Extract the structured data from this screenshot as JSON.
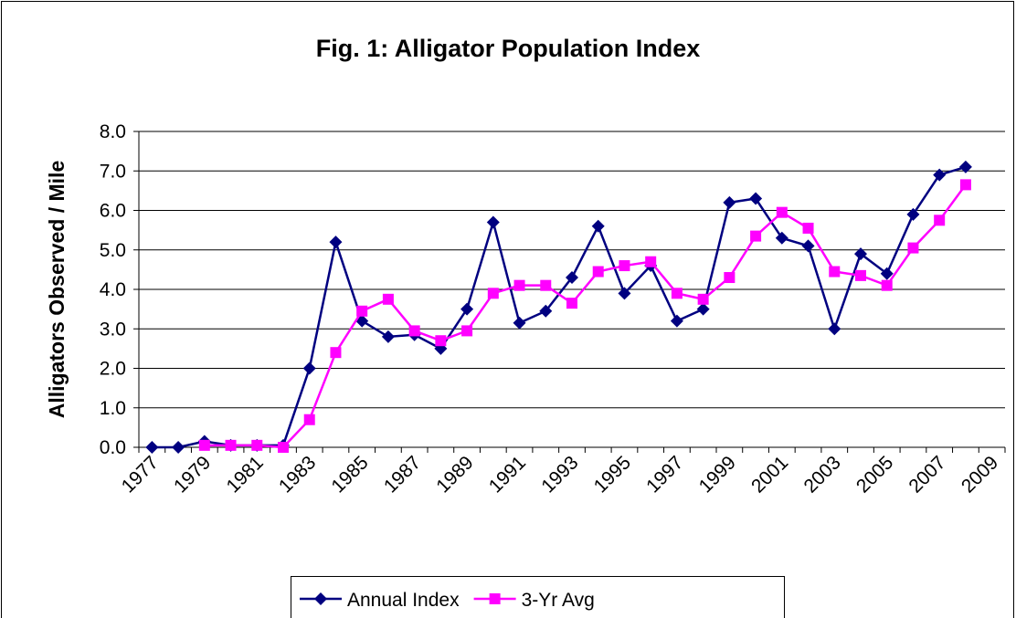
{
  "chart_data": {
    "type": "line",
    "title": "Fig. 1: Alligator Population Index",
    "y_label": "Alligators Observed / Mile",
    "categories": [
      1977,
      null,
      1979,
      null,
      1981,
      null,
      1983,
      null,
      1985,
      null,
      1987,
      null,
      1989,
      null,
      1991,
      null,
      1993,
      null,
      1995,
      null,
      1997,
      null,
      1999,
      null,
      2001,
      null,
      2003,
      null,
      2005,
      null,
      2007,
      null,
      2009
    ],
    "series": [
      {
        "name": "Annual Index",
        "color": "#000080",
        "marker": "diamond",
        "values": [
          0.0,
          0.0,
          0.15,
          0.05,
          0.05,
          0.05,
          2.0,
          5.2,
          3.2,
          2.8,
          2.85,
          2.5,
          3.5,
          5.7,
          3.15,
          3.45,
          4.3,
          5.6,
          3.9,
          4.6,
          3.2,
          3.5,
          6.2,
          6.3,
          5.3,
          5.1,
          3.0,
          4.9,
          4.4,
          5.9,
          6.9,
          7.1,
          null
        ]
      },
      {
        "name": "3-Yr Avg",
        "color": "#FF00FF",
        "marker": "square",
        "values": [
          null,
          null,
          0.05,
          0.05,
          0.05,
          0.0,
          0.7,
          2.4,
          3.45,
          3.75,
          2.95,
          2.7,
          2.95,
          3.9,
          4.1,
          4.1,
          3.65,
          4.45,
          4.6,
          4.7,
          3.9,
          3.75,
          4.3,
          5.35,
          5.95,
          5.55,
          4.45,
          4.35,
          4.1,
          5.05,
          5.75,
          6.65,
          null
        ]
      }
    ],
    "ylim": [
      0,
      8
    ],
    "yticks": [
      {
        "value": 0,
        "label": "0.0"
      },
      {
        "value": 1,
        "label": "1.0"
      },
      {
        "value": 2,
        "label": "2.0"
      },
      {
        "value": 3,
        "label": "3.0"
      },
      {
        "value": 4,
        "label": "4.0"
      },
      {
        "value": 5,
        "label": "5.0"
      },
      {
        "value": 6,
        "label": "6.0"
      },
      {
        "value": 7,
        "label": "7.0"
      },
      {
        "value": 8,
        "label": "8.0"
      }
    ],
    "grid": true,
    "legend": "bottom"
  }
}
